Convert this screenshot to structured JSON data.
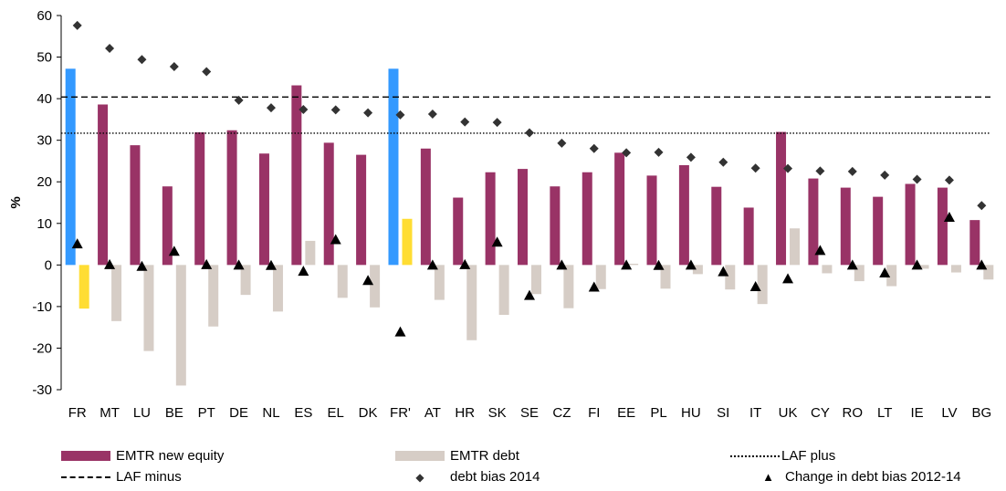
{
  "chart_data": {
    "type": "bar",
    "ylabel": "%",
    "ylim": [
      -30,
      60
    ],
    "yticks": [
      60,
      50,
      40,
      30,
      20,
      10,
      0,
      -10,
      -20,
      -30
    ],
    "categories": [
      "FR",
      "MT",
      "LU",
      "BE",
      "PT",
      "DE",
      "NL",
      "ES",
      "EL",
      "DK",
      "FR'",
      "AT",
      "HR",
      "SK",
      "SE",
      "CZ",
      "FI",
      "EE",
      "PL",
      "HU",
      "SI",
      "IT",
      "UK",
      "CY",
      "RO",
      "LT",
      "IE",
      "LV",
      "BG"
    ],
    "series": [
      {
        "name": "EMTR new equity",
        "kind": "bar",
        "color": "#993366",
        "highlight": {
          "FR": "#3399ff",
          "FR'": "#3399ff"
        },
        "values": [
          47.2,
          38.6,
          28.8,
          18.9,
          31.9,
          32.4,
          26.8,
          43.2,
          29.4,
          26.5,
          47.2,
          28.0,
          16.2,
          22.3,
          23.1,
          18.9,
          22.3,
          27.0,
          21.5,
          24.0,
          18.8,
          13.8,
          32.0,
          20.8,
          18.6,
          16.4,
          19.5,
          18.6,
          10.8
        ]
      },
      {
        "name": "EMTR debt",
        "kind": "bar",
        "color": "#d6cdc6",
        "highlight": {
          "FR": "#ffdd33",
          "FR'": "#ffdd33"
        },
        "values": [
          -10.5,
          -13.5,
          -20.7,
          -29.0,
          -14.8,
          -7.2,
          -11.2,
          5.8,
          -7.9,
          -10.2,
          11.1,
          -8.4,
          -18.1,
          -12.0,
          -7.0,
          -10.4,
          -5.8,
          0.3,
          -5.7,
          -2.2,
          -5.9,
          -9.4,
          8.8,
          -2.0,
          -3.9,
          -5.1,
          -0.9,
          -1.8,
          -3.5
        ]
      },
      {
        "name": "debt bias 2014",
        "kind": "diamond",
        "color": "#333333",
        "values": [
          57.6,
          52.1,
          49.4,
          47.7,
          46.5,
          39.6,
          37.8,
          37.4,
          37.3,
          36.6,
          36.1,
          36.3,
          34.4,
          34.3,
          31.8,
          29.3,
          28.0,
          27.0,
          27.1,
          25.9,
          24.7,
          23.3,
          23.2,
          22.6,
          22.5,
          21.6,
          20.6,
          20.4,
          14.3
        ]
      },
      {
        "name": "Change in debt bias 2012-14",
        "kind": "triangle",
        "color": "#000000",
        "values": [
          5.1,
          0.1,
          -0.3,
          3.3,
          0.1,
          0.0,
          -0.1,
          -1.5,
          6.1,
          -3.7,
          -16.1,
          0.0,
          0.1,
          5.5,
          -7.3,
          0.0,
          -5.3,
          0.0,
          -0.1,
          0.0,
          -1.6,
          -5.2,
          -3.3,
          3.5,
          0.0,
          -1.9,
          0.0,
          11.5,
          0.0
        ]
      }
    ],
    "lines": [
      {
        "name": "LAF minus",
        "value": 40.4,
        "style": "dashed"
      },
      {
        "name": "LAF plus",
        "value": 31.7,
        "style": "dotted"
      }
    ],
    "legend_position": "bottom",
    "grid": false
  },
  "legend": {
    "equity": "EMTR new equity",
    "debt": "EMTR debt",
    "laf_plus": "LAF plus",
    "laf_minus": "LAF minus",
    "bias": "debt bias 2014",
    "change": "Change in debt bias 2012-14"
  }
}
